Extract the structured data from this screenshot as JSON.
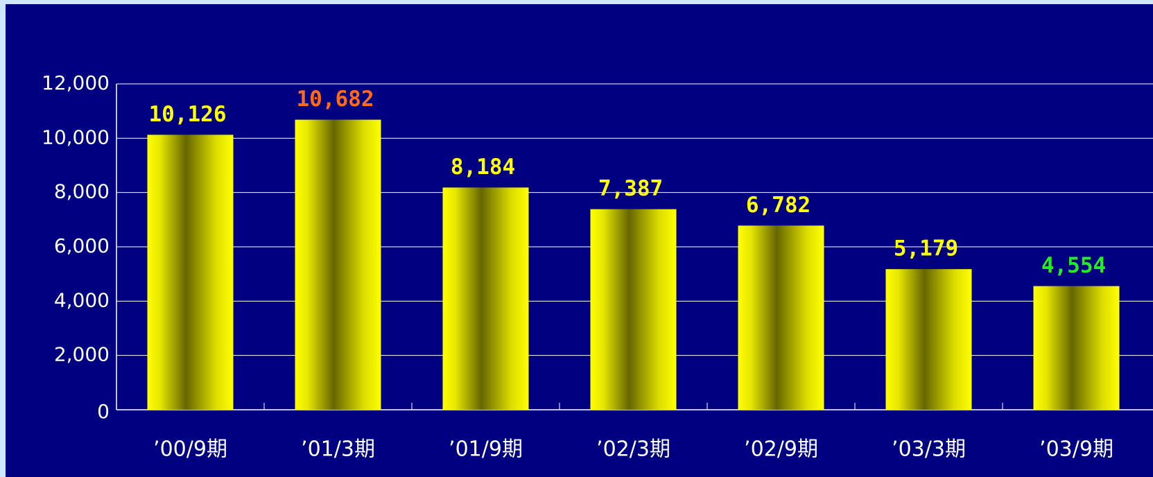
{
  "chart_data": {
    "type": "bar",
    "categories": [
      "’00/9期",
      "’01/3期",
      "’01/9期",
      "’02/3期",
      "’02/9期",
      "’03/3期",
      "’03/9期"
    ],
    "values": [
      10126,
      10682,
      8184,
      7387,
      6782,
      5179,
      4554
    ],
    "value_labels": [
      "10,126",
      "10,682",
      "8,184",
      "7,387",
      "6,782",
      "5,179",
      "4,554"
    ],
    "label_colors": [
      "#ffff00",
      "#ff6a1a",
      "#ffff00",
      "#ffff00",
      "#ffff00",
      "#ffff00",
      "#22ee22"
    ],
    "color": "#ffff00",
    "ylim": [
      0,
      12000
    ],
    "yticks": [
      0,
      {
        "value": 2000,
        "label": "2,000"
      },
      {
        "value": 4000,
        "label": "4,000"
      },
      {
        "value": 6000,
        "label": "6,000"
      },
      {
        "value": 8000,
        "label": "8,000"
      },
      {
        "value": 10000,
        "label": "10,000"
      },
      {
        "value": 12000,
        "label": "12,000"
      }
    ],
    "grid": true
  }
}
